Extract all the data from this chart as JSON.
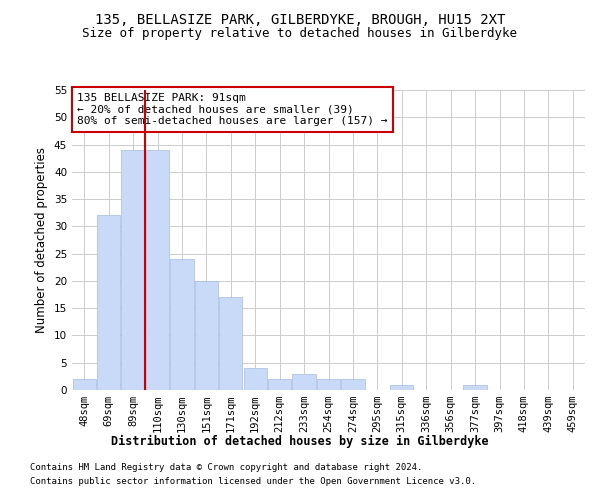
{
  "title_line1": "135, BELLASIZE PARK, GILBERDYKE, BROUGH, HU15 2XT",
  "title_line2": "Size of property relative to detached houses in Gilberdyke",
  "xlabel": "Distribution of detached houses by size in Gilberdyke",
  "ylabel": "Number of detached properties",
  "bar_labels": [
    "48sqm",
    "69sqm",
    "89sqm",
    "110sqm",
    "130sqm",
    "151sqm",
    "171sqm",
    "192sqm",
    "212sqm",
    "233sqm",
    "254sqm",
    "274sqm",
    "295sqm",
    "315sqm",
    "336sqm",
    "356sqm",
    "377sqm",
    "397sqm",
    "418sqm",
    "439sqm",
    "459sqm"
  ],
  "bar_values": [
    2,
    32,
    44,
    44,
    24,
    20,
    17,
    4,
    2,
    3,
    2,
    2,
    0,
    1,
    0,
    0,
    1,
    0,
    0,
    0,
    0
  ],
  "bar_color": "#c9daf8",
  "bar_edgecolor": "#a4bde0",
  "vline_x_index": 2.5,
  "vline_color": "#cc0000",
  "annotation_text": "135 BELLASIZE PARK: 91sqm\n← 20% of detached houses are smaller (39)\n80% of semi-detached houses are larger (157) →",
  "annotation_box_color": "#ffffff",
  "annotation_box_edgecolor": "#cc0000",
  "ylim": [
    0,
    55
  ],
  "yticks": [
    0,
    5,
    10,
    15,
    20,
    25,
    30,
    35,
    40,
    45,
    50,
    55
  ],
  "grid_color": "#cccccc",
  "bg_color": "#ffffff",
  "footer_line1": "Contains HM Land Registry data © Crown copyright and database right 2024.",
  "footer_line2": "Contains public sector information licensed under the Open Government Licence v3.0.",
  "title_fontsize": 10,
  "subtitle_fontsize": 9,
  "axis_label_fontsize": 8.5,
  "tick_fontsize": 7.5,
  "footer_fontsize": 6.5
}
